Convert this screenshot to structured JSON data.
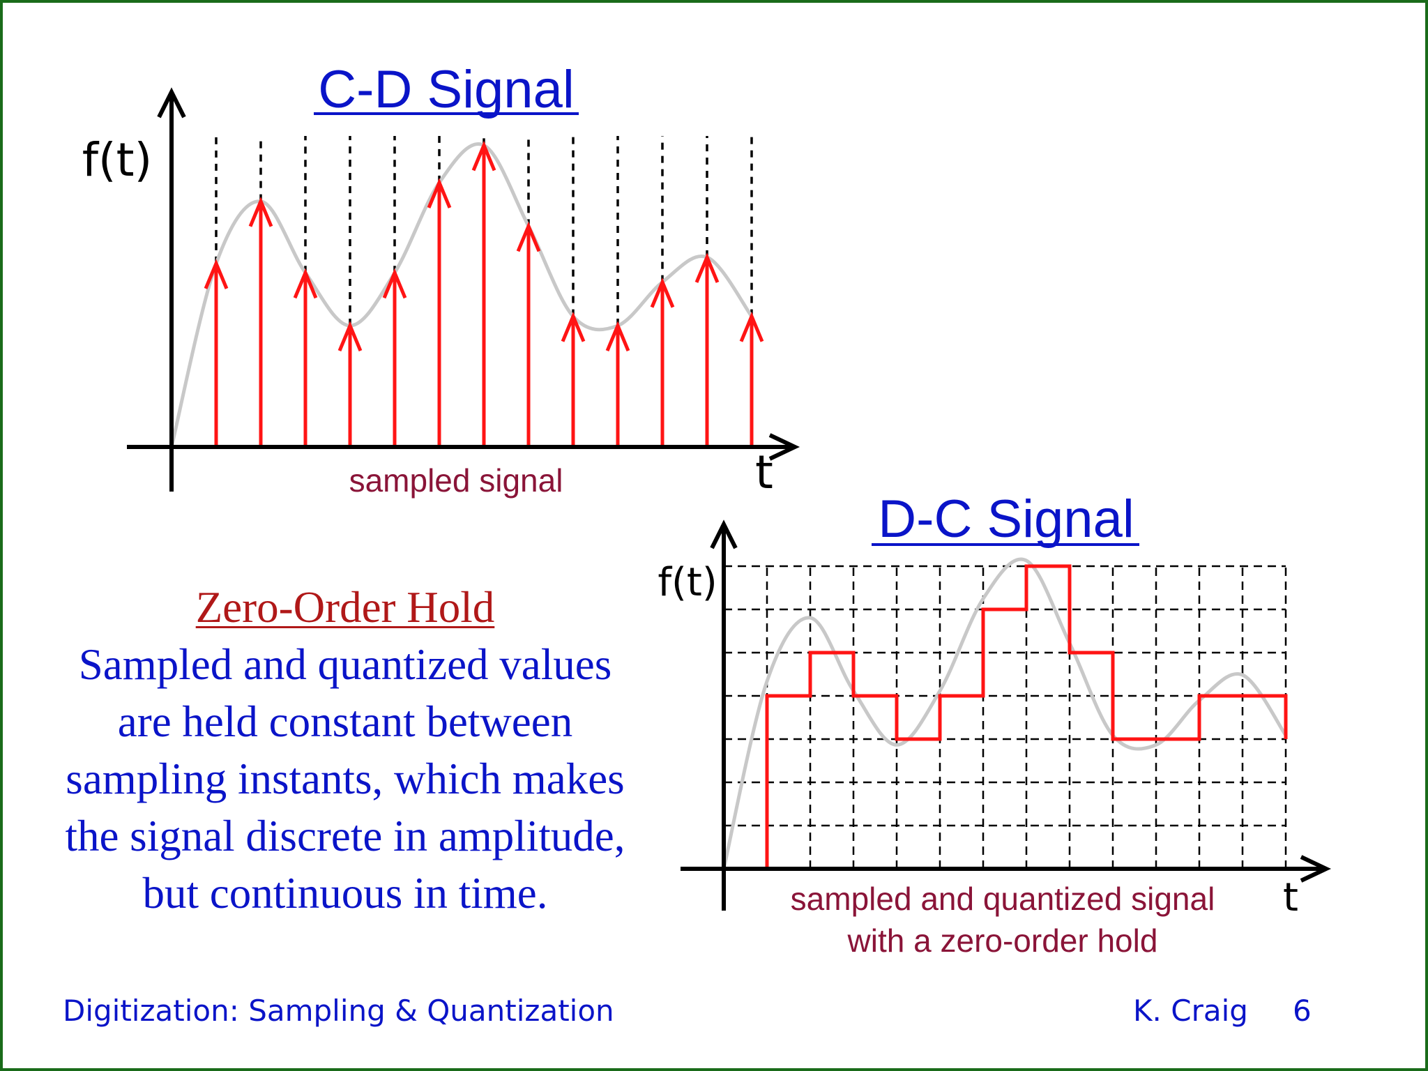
{
  "slide": {
    "border_color": "#1a6b1a",
    "accent_text_color": "#0a14c8",
    "caption_color": "#8a1438",
    "signal_color": "#c8c8c8",
    "sample_color": "#ff1414"
  },
  "cd_chart": {
    "title": "C-D Signal",
    "ylabel": "f(t)",
    "xlabel": "t",
    "caption": "sampled signal",
    "sample_heights": [
      0.59,
      0.79,
      0.56,
      0.39,
      0.56,
      0.85,
      0.97,
      0.71,
      0.42,
      0.39,
      0.53,
      0.61,
      0.42
    ]
  },
  "dc_chart": {
    "title": "D-C Signal",
    "ylabel": "f(t)",
    "xlabel": "t",
    "caption_line1": "sampled and quantized signal",
    "caption_line2": "with a zero-order hold",
    "grid_columns": 13,
    "grid_rows": 7,
    "held_levels": [
      0,
      4,
      5,
      4,
      3,
      4,
      6,
      7,
      5,
      3,
      3,
      4,
      4
    ]
  },
  "zero_order_hold": {
    "title": "Zero-Order Hold",
    "line1": "Sampled and quantized values",
    "line2": "are held constant between",
    "line3": "sampling instants, which makes",
    "line4": "the signal discrete in amplitude,",
    "line5": "but continuous in time."
  },
  "footer": {
    "left": "Digitization: Sampling & Quantization",
    "author": "K. Craig",
    "page": "6"
  }
}
